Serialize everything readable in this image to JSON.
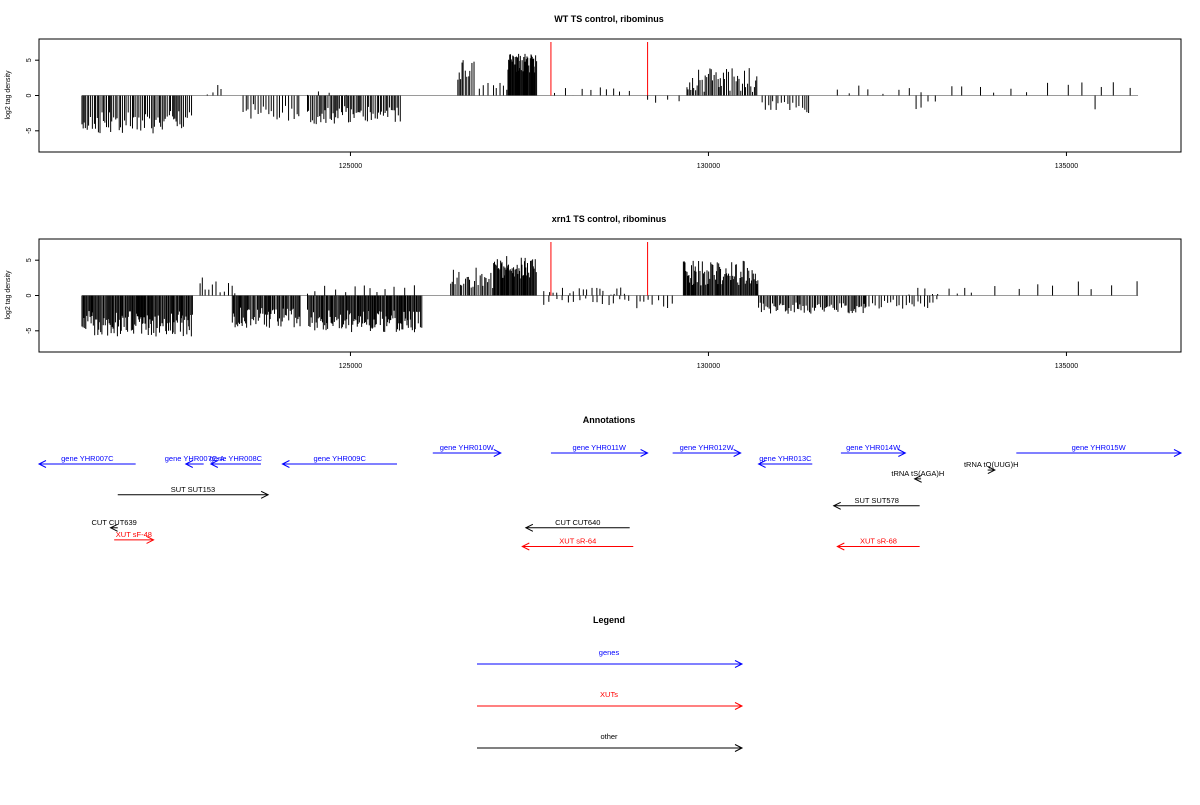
{
  "chart_data": [
    {
      "type": "bar",
      "title": "WT TS control, ribominus",
      "ylabel": "log2 tag density",
      "xlim": [
        120650,
        136600
      ],
      "ylim": [
        -8,
        8
      ],
      "x_ticks": [
        125000,
        130000,
        135000
      ],
      "y_ticks": [
        -5,
        0,
        5
      ],
      "grid": false,
      "markers": [
        127800,
        129150
      ],
      "marker_color": "#ff0000",
      "bar_color": "#000000",
      "segments": [
        {
          "x0": 121250,
          "x1": 122800,
          "mean": -3.8,
          "amp": 1.6,
          "step": 22
        },
        {
          "x0": 123000,
          "x1": 123200,
          "mean": 0.8,
          "amp": 0.7,
          "step": 70
        },
        {
          "x0": 123500,
          "x1": 124300,
          "mean": -2.4,
          "amp": 1.2,
          "step": 35
        },
        {
          "x0": 124400,
          "x1": 125000,
          "mean": 0.4,
          "amp": 0.6,
          "step": 130
        },
        {
          "x0": 124400,
          "x1": 125700,
          "mean": -2.8,
          "amp": 1.3,
          "step": 22
        },
        {
          "x0": 126500,
          "x1": 126750,
          "mean": 3.5,
          "amp": 1.8,
          "step": 22
        },
        {
          "x0": 126800,
          "x1": 127200,
          "mean": 1.0,
          "amp": 0.8,
          "step": 60
        },
        {
          "x0": 127200,
          "x1": 127600,
          "mean": 4.5,
          "amp": 1.4,
          "step": 10
        },
        {
          "x0": 127850,
          "x1": 128900,
          "mean": 0.7,
          "amp": 0.7,
          "step": 120
        },
        {
          "x0": 129150,
          "x1": 129600,
          "mean": -0.6,
          "amp": 0.5,
          "step": 160
        },
        {
          "x0": 129700,
          "x1": 130700,
          "mean": 2.2,
          "amp": 1.7,
          "step": 22
        },
        {
          "x0": 130750,
          "x1": 131400,
          "mean": -1.6,
          "amp": 0.9,
          "step": 40
        },
        {
          "x0": 131800,
          "x1": 133000,
          "mean": 0.8,
          "amp": 0.7,
          "step": 170
        },
        {
          "x0": 132900,
          "x1": 133200,
          "mean": -1.4,
          "amp": 0.6,
          "step": 80
        },
        {
          "x0": 133400,
          "x1": 136000,
          "mean": 1.2,
          "amp": 0.8,
          "step": 210
        },
        {
          "x0": 135400,
          "x1": 135450,
          "mean": -1.8,
          "amp": 0.3,
          "step": 60
        }
      ]
    },
    {
      "type": "bar",
      "title": "xrn1 TS control, ribominus",
      "ylabel": "log2 tag density",
      "xlim": [
        120650,
        136600
      ],
      "ylim": [
        -8,
        8
      ],
      "x_ticks": [
        125000,
        130000,
        135000
      ],
      "y_ticks": [
        -5,
        0,
        5
      ],
      "grid": false,
      "markers": [
        127800,
        129150
      ],
      "marker_color": "#ff0000",
      "bar_color": "#000000",
      "segments": [
        {
          "x0": 121250,
          "x1": 122800,
          "mean": -4.0,
          "amp": 1.8,
          "step": 14
        },
        {
          "x0": 122900,
          "x1": 123400,
          "mean": 1.5,
          "amp": 1.2,
          "step": 45
        },
        {
          "x0": 123350,
          "x1": 124300,
          "mean": -3.2,
          "amp": 1.5,
          "step": 16
        },
        {
          "x0": 124400,
          "x1": 126000,
          "mean": 0.8,
          "amp": 0.8,
          "step": 110
        },
        {
          "x0": 124400,
          "x1": 126000,
          "mean": -3.6,
          "amp": 1.6,
          "step": 14
        },
        {
          "x0": 126400,
          "x1": 127000,
          "mean": 2.5,
          "amp": 1.5,
          "step": 22
        },
        {
          "x0": 127000,
          "x1": 127600,
          "mean": 4.0,
          "amp": 1.6,
          "step": 12
        },
        {
          "x0": 127700,
          "x1": 128900,
          "mean": 0.6,
          "amp": 0.7,
          "step": 60
        },
        {
          "x0": 127700,
          "x1": 128900,
          "mean": -1.0,
          "amp": 0.6,
          "step": 85
        },
        {
          "x0": 129000,
          "x1": 129500,
          "mean": -1.2,
          "amp": 0.6,
          "step": 70
        },
        {
          "x0": 129650,
          "x1": 130700,
          "mean": 3.2,
          "amp": 1.8,
          "step": 14
        },
        {
          "x0": 130700,
          "x1": 132200,
          "mean": -1.8,
          "amp": 0.8,
          "step": 20
        },
        {
          "x0": 132200,
          "x1": 133200,
          "mean": -1.2,
          "amp": 0.7,
          "step": 40
        },
        {
          "x0": 132800,
          "x1": 133800,
          "mean": 0.7,
          "amp": 0.6,
          "step": 120
        },
        {
          "x0": 134000,
          "x1": 136000,
          "mean": 1.3,
          "amp": 0.9,
          "step": 260
        }
      ]
    }
  ],
  "annotations": {
    "title": "Annotations",
    "items": [
      {
        "label": "gene YHR007C",
        "kind": "gene",
        "start": 120650,
        "end": 122000,
        "dir": "reverse",
        "row": 0
      },
      {
        "label": "gene YHR007C-A",
        "kind": "gene",
        "start": 122700,
        "end": 122950,
        "dir": "reverse",
        "row": 0
      },
      {
        "label": "gene YHR008C",
        "kind": "gene",
        "start": 123050,
        "end": 123750,
        "dir": "reverse",
        "row": 0
      },
      {
        "label": "gene YHR009C",
        "kind": "gene",
        "start": 124050,
        "end": 125650,
        "dir": "reverse",
        "row": 0
      },
      {
        "label": "gene YHR010W",
        "kind": "gene",
        "start": 126150,
        "end": 127100,
        "dir": "forward",
        "row": -1
      },
      {
        "label": "gene YHR011W",
        "kind": "gene",
        "start": 127800,
        "end": 129150,
        "dir": "forward",
        "row": -1
      },
      {
        "label": "gene YHR012W",
        "kind": "gene",
        "start": 129500,
        "end": 130450,
        "dir": "forward",
        "row": -1
      },
      {
        "label": "gene YHR013C",
        "kind": "gene",
        "start": 130700,
        "end": 131450,
        "dir": "reverse",
        "row": 0
      },
      {
        "label": "gene YHR014W",
        "kind": "gene",
        "start": 131850,
        "end": 132750,
        "dir": "forward",
        "row": -1
      },
      {
        "label": "gene YHR015W",
        "kind": "gene",
        "start": 134300,
        "end": 136600,
        "dir": "forward",
        "row": -1
      },
      {
        "label": "tRNA tS(AGA)H",
        "kind": "other",
        "start": 132880,
        "end": 132970,
        "dir": "reverse",
        "row": 1.35
      },
      {
        "label": "tRNA tQ(UUG)H",
        "kind": "other",
        "start": 133900,
        "end": 134000,
        "dir": "forward",
        "row": 0.55
      },
      {
        "label": "SUT SUT153",
        "kind": "other",
        "start": 121750,
        "end": 123850,
        "dir": "forward",
        "row": 2.8
      },
      {
        "label": "SUT SUT578",
        "kind": "other",
        "start": 131750,
        "end": 132950,
        "dir": "reverse",
        "row": 3.8
      },
      {
        "label": "CUT CUT639",
        "kind": "other",
        "start": 121650,
        "end": 121750,
        "dir": "reverse",
        "row": 5.8
      },
      {
        "label": "XUT sF-48",
        "kind": "xut",
        "start": 121700,
        "end": 122250,
        "dir": "forward",
        "row": 6.9
      },
      {
        "label": "CUT CUT640",
        "kind": "other",
        "start": 127450,
        "end": 128900,
        "dir": "reverse",
        "row": 5.8
      },
      {
        "label": "XUT sR-64",
        "kind": "xut",
        "start": 127400,
        "end": 128950,
        "dir": "reverse",
        "row": 7.5
      },
      {
        "label": "XUT sR-68",
        "kind": "xut",
        "start": 131800,
        "end": 132950,
        "dir": "reverse",
        "row": 7.5
      }
    ]
  },
  "legend": {
    "title": "Legend",
    "entries": [
      {
        "label": "genes",
        "color": "#0000ff"
      },
      {
        "label": "XUTs",
        "color": "#ff0000"
      },
      {
        "label": "other",
        "color": "#000000"
      }
    ]
  },
  "colors": {
    "gene": "#0000ff",
    "xut": "#ff0000",
    "other": "#000000",
    "baseline": "#9a9a9a"
  }
}
